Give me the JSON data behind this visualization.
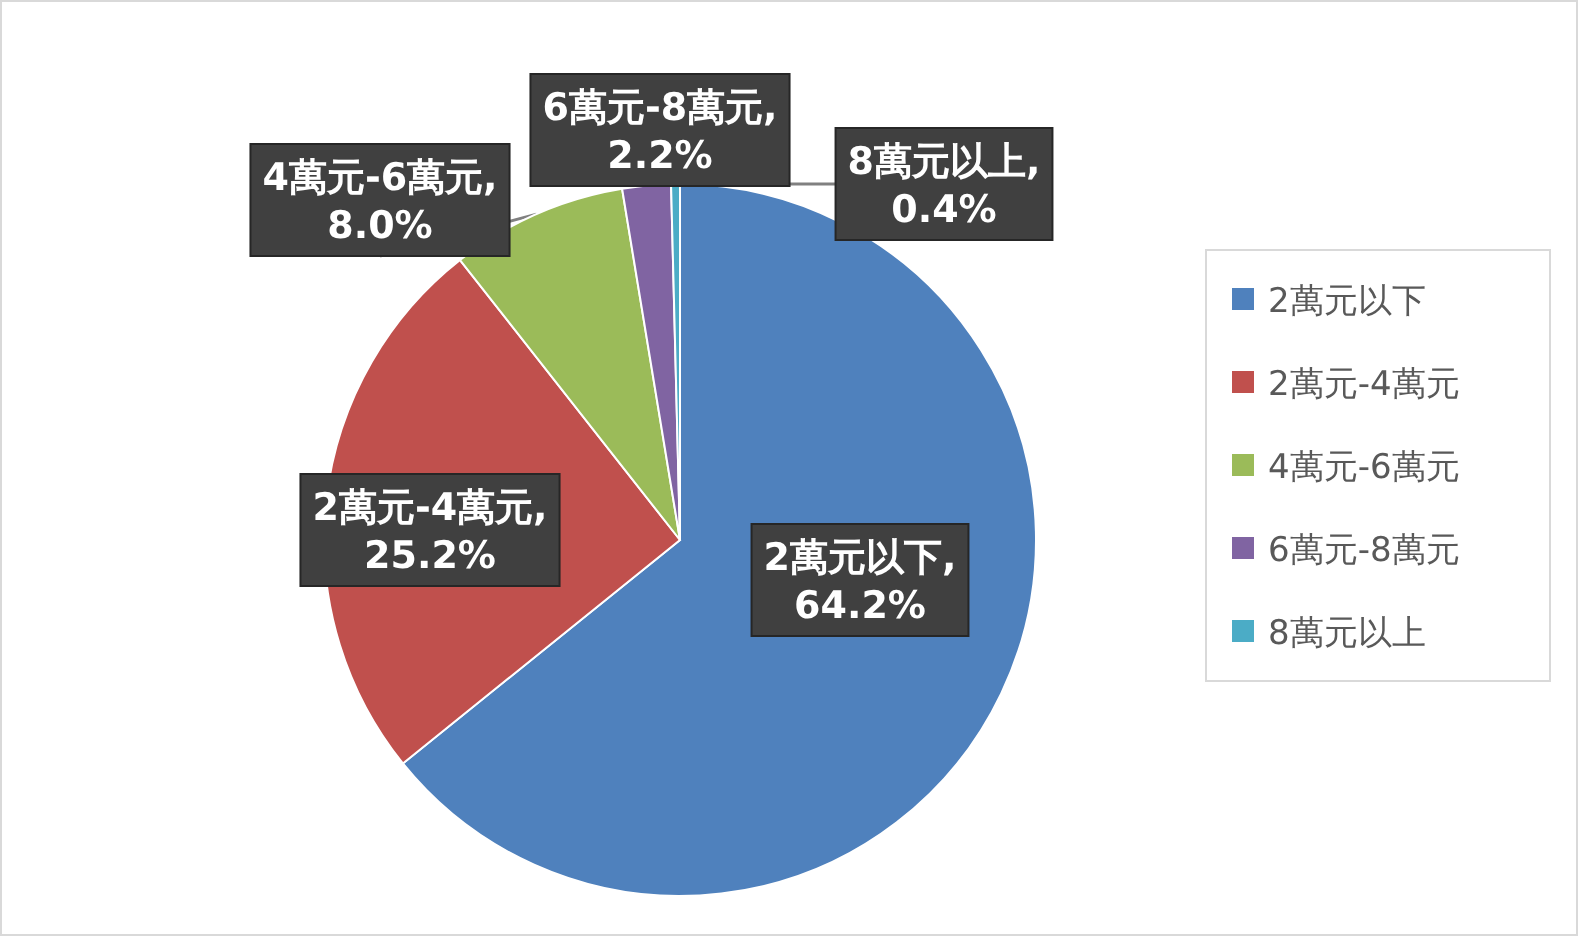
{
  "chart_data": {
    "type": "pie",
    "categories": [
      "2萬元以下",
      "2萬元-4萬元",
      "4萬元-6萬元",
      "6萬元-8萬元",
      "8萬元以上"
    ],
    "values": [
      64.2,
      25.2,
      8.0,
      2.2,
      0.4
    ],
    "colors": [
      "#4f81bd",
      "#c0504d",
      "#9bbb59",
      "#8064a2",
      "#4bacc6"
    ],
    "value_labels": [
      "2萬元以下,64.2%",
      "2萬元-4萬元,25.2%",
      "4萬元-6萬元,8.0%",
      "6萬元-8萬元,2.2%",
      "8萬元以上,0.4%"
    ],
    "legend": "right"
  }
}
